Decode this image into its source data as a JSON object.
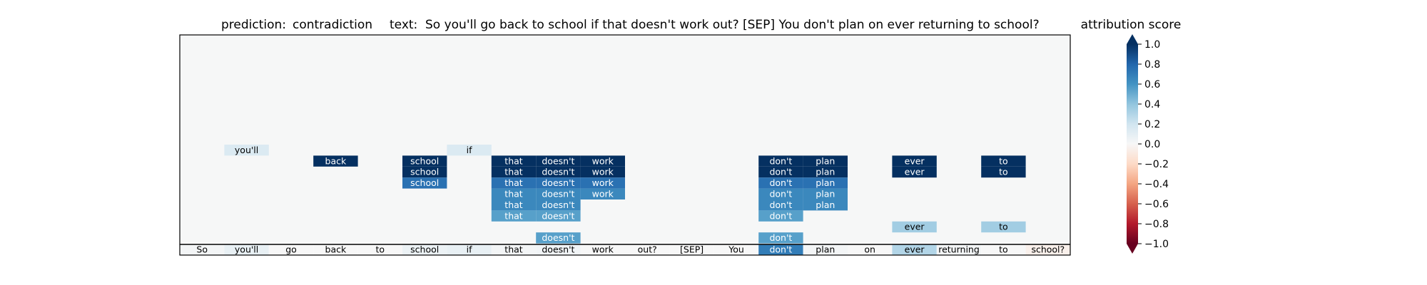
{
  "chart_data": {
    "type": "heatmap",
    "title": {
      "prediction_label": "prediction:",
      "prediction_value": "contradiction",
      "text_label": "text:",
      "text_value": "So you'll go back to school if that doesn't work out? [SEP] You don't plan on ever returning to school?"
    },
    "colorbar": {
      "title": "attribution score",
      "ticks": [
        "1.0",
        "0.8",
        "0.6",
        "0.4",
        "0.2",
        "0.0",
        "−0.2",
        "−0.4",
        "−0.6",
        "−0.8",
        "−1.0"
      ],
      "range": [
        -1.0,
        1.0
      ],
      "colormap": "RdBu"
    },
    "tokens": [
      "So",
      "you'll",
      "go",
      "back",
      "to",
      "school",
      "if",
      "that",
      "doesn't",
      "work",
      "out?",
      "[SEP]",
      "You",
      "don't",
      "plan",
      "on",
      "ever",
      "returning",
      "to",
      "school?"
    ],
    "bottom_row_scores": [
      0.02,
      0.08,
      0.0,
      0.0,
      0.0,
      0.06,
      0.08,
      0.02,
      0.03,
      0.0,
      0.0,
      0.0,
      0.0,
      0.7,
      0.02,
      0.0,
      0.3,
      0.02,
      0.0,
      -0.05
    ],
    "layers": [
      {
        "row": 1,
        "cells": [
          {
            "token": 1,
            "text": "you'll",
            "score": 0.15
          },
          {
            "token": 6,
            "text": "if",
            "score": 0.15
          }
        ]
      },
      {
        "row": 2,
        "cells": [
          {
            "token": 3,
            "text": "back",
            "score": 1.0
          },
          {
            "token": 5,
            "text": "school",
            "score": 1.0
          },
          {
            "token": 7,
            "text": "that",
            "score": 1.0
          },
          {
            "token": 8,
            "text": "doesn't",
            "score": 1.0
          },
          {
            "token": 9,
            "text": "work",
            "score": 1.0
          },
          {
            "token": 13,
            "text": "don't",
            "score": 1.0
          },
          {
            "token": 14,
            "text": "plan",
            "score": 1.0
          },
          {
            "token": 16,
            "text": "ever",
            "score": 1.0
          },
          {
            "token": 18,
            "text": "to",
            "score": 1.0
          }
        ]
      },
      {
        "row": 3,
        "cells": [
          {
            "token": 5,
            "text": "school",
            "score": 1.0
          },
          {
            "token": 7,
            "text": "that",
            "score": 1.0
          },
          {
            "token": 8,
            "text": "doesn't",
            "score": 1.0
          },
          {
            "token": 9,
            "text": "work",
            "score": 1.0
          },
          {
            "token": 13,
            "text": "don't",
            "score": 1.0
          },
          {
            "token": 14,
            "text": "plan",
            "score": 1.0
          },
          {
            "token": 16,
            "text": "ever",
            "score": 1.0
          },
          {
            "token": 18,
            "text": "to",
            "score": 1.0
          }
        ]
      },
      {
        "row": 4,
        "cells": [
          {
            "token": 5,
            "text": "school",
            "score": 0.75
          },
          {
            "token": 7,
            "text": "that",
            "score": 0.75
          },
          {
            "token": 8,
            "text": "doesn't",
            "score": 0.75
          },
          {
            "token": 9,
            "text": "work",
            "score": 0.75
          },
          {
            "token": 13,
            "text": "don't",
            "score": 0.75
          },
          {
            "token": 14,
            "text": "plan",
            "score": 0.75
          }
        ]
      },
      {
        "row": 5,
        "cells": [
          {
            "token": 7,
            "text": "that",
            "score": 0.65
          },
          {
            "token": 8,
            "text": "doesn't",
            "score": 0.65
          },
          {
            "token": 9,
            "text": "work",
            "score": 0.65
          },
          {
            "token": 13,
            "text": "don't",
            "score": 0.65
          },
          {
            "token": 14,
            "text": "plan",
            "score": 0.65
          }
        ]
      },
      {
        "row": 6,
        "cells": [
          {
            "token": 7,
            "text": "that",
            "score": 0.65
          },
          {
            "token": 8,
            "text": "doesn't",
            "score": 0.65
          },
          {
            "token": 13,
            "text": "don't",
            "score": 0.65
          },
          {
            "token": 14,
            "text": "plan",
            "score": 0.65
          }
        ]
      },
      {
        "row": 7,
        "cells": [
          {
            "token": 7,
            "text": "that",
            "score": 0.55
          },
          {
            "token": 8,
            "text": "doesn't",
            "score": 0.55
          },
          {
            "token": 13,
            "text": "don't",
            "score": 0.55
          }
        ]
      },
      {
        "row": 8,
        "cells": [
          {
            "token": 16,
            "text": "ever",
            "score": 0.35
          },
          {
            "token": 18,
            "text": "to",
            "score": 0.35
          }
        ]
      },
      {
        "row": 9,
        "cells": [
          {
            "token": 8,
            "text": "doesn't",
            "score": 0.55
          },
          {
            "token": 13,
            "text": "don't",
            "score": 0.55
          }
        ]
      }
    ]
  }
}
